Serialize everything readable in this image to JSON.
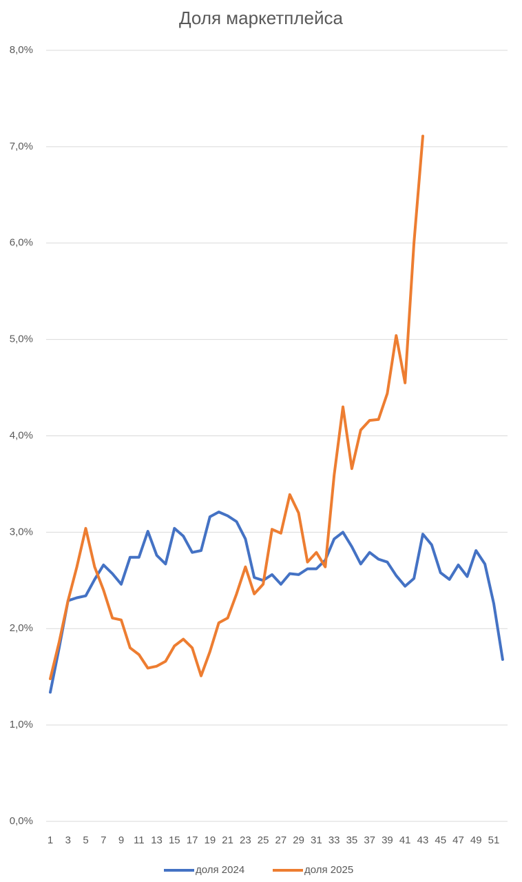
{
  "chart_data": {
    "type": "line",
    "title": "Доля маркетплейса",
    "categories": [
      1,
      null,
      3,
      null,
      5,
      null,
      7,
      null,
      9,
      null,
      11,
      null,
      13,
      null,
      15,
      null,
      17,
      null,
      19,
      null,
      21,
      null,
      23,
      null,
      25,
      null,
      27,
      null,
      29,
      null,
      31,
      null,
      33,
      null,
      35,
      null,
      37,
      null,
      39,
      null,
      41,
      null,
      43,
      null,
      45,
      null,
      47,
      null,
      49,
      null,
      51,
      null
    ],
    "series": [
      {
        "name": "доля 2024",
        "color": "#4472c4",
        "values": [
          1.34,
          1.8,
          2.29,
          2.32,
          2.34,
          2.51,
          2.66,
          2.57,
          2.46,
          2.74,
          2.74,
          3.01,
          2.76,
          2.67,
          3.04,
          2.96,
          2.79,
          2.81,
          3.16,
          3.21,
          3.17,
          3.11,
          2.93,
          2.53,
          2.5,
          2.56,
          2.46,
          2.57,
          2.56,
          2.62,
          2.62,
          2.71,
          2.93,
          3.0,
          2.85,
          2.67,
          2.79,
          2.72,
          2.69,
          2.55,
          2.44,
          2.52,
          2.98,
          2.87,
          2.58,
          2.51,
          2.66,
          2.54,
          2.81,
          2.67,
          2.26,
          1.68
        ]
      },
      {
        "name": "доля 2025",
        "color": "#ed7d31",
        "values": [
          1.48,
          1.86,
          2.29,
          2.64,
          3.04,
          2.64,
          2.4,
          2.11,
          2.09,
          1.8,
          1.73,
          1.59,
          1.61,
          1.66,
          1.82,
          1.89,
          1.8,
          1.51,
          1.76,
          2.06,
          2.11,
          2.36,
          2.64,
          2.36,
          2.46,
          3.03,
          2.99,
          3.39,
          3.2,
          2.69,
          2.79,
          2.64,
          3.59,
          4.3,
          3.66,
          4.06,
          4.16,
          4.17,
          4.44,
          5.04,
          4.55,
          6.0,
          7.11,
          null,
          null,
          null,
          null,
          null,
          null,
          null,
          null,
          null
        ]
      }
    ],
    "ylim": [
      0,
      8
    ],
    "yticks": [
      {
        "value": 0,
        "label": "0,0%"
      },
      {
        "value": 1,
        "label": "1,0%"
      },
      {
        "value": 2,
        "label": "2,0%"
      },
      {
        "value": 3,
        "label": "3,0%"
      },
      {
        "value": 4,
        "label": "4,0%"
      },
      {
        "value": 5,
        "label": "5,0%"
      },
      {
        "value": 6,
        "label": "6,0%"
      },
      {
        "value": 7,
        "label": "7,0%"
      },
      {
        "value": 8,
        "label": "8,0%"
      }
    ],
    "grid": true,
    "legend": "bottom"
  }
}
